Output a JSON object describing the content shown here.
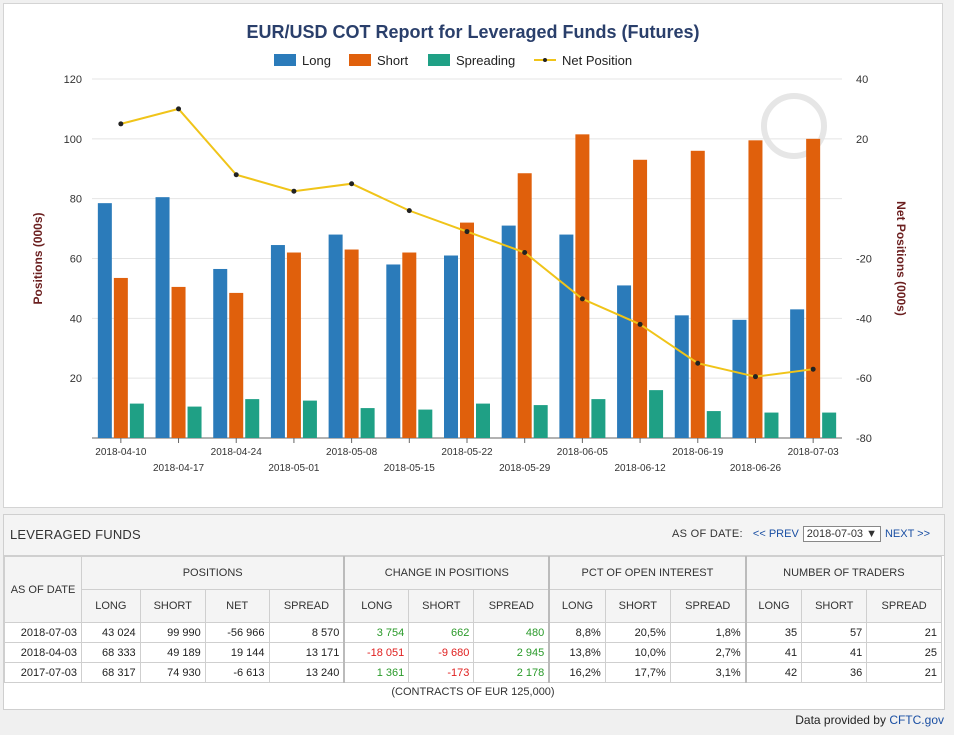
{
  "chart_data": {
    "type": "bar",
    "title": "EUR/USD COT Report for Leveraged Funds (Futures)",
    "ylabel": "Positions (000s)",
    "y2label": "Net Positions (000s)",
    "ylim": [
      0,
      120
    ],
    "y2lim": [
      -80,
      40
    ],
    "yticks": [
      20,
      40,
      60,
      80,
      100,
      120
    ],
    "y2ticks": [
      -80,
      -60,
      -40,
      -20,
      20,
      40
    ],
    "grid": true,
    "legend_position": "top-center",
    "categories": [
      "2018-04-10",
      "2018-04-17",
      "2018-04-24",
      "2018-05-01",
      "2018-05-08",
      "2018-05-15",
      "2018-05-22",
      "2018-05-29",
      "2018-06-05",
      "2018-06-12",
      "2018-06-19",
      "2018-06-26",
      "2018-07-03"
    ],
    "series": [
      {
        "name": "Long",
        "type": "bar",
        "color": "#2b7bba",
        "values": [
          78.5,
          80.5,
          56.5,
          64.5,
          68,
          58,
          61,
          71,
          68,
          51,
          41,
          39.5,
          43
        ]
      },
      {
        "name": "Short",
        "type": "bar",
        "color": "#e0600c",
        "values": [
          53.5,
          50.5,
          48.5,
          62,
          63,
          62,
          72,
          88.5,
          101.5,
          93,
          96,
          99.5,
          100
        ]
      },
      {
        "name": "Spreading",
        "type": "bar",
        "color": "#1fa085",
        "values": [
          11.5,
          10.5,
          13,
          12.5,
          10,
          9.5,
          11.5,
          11,
          13,
          16,
          9,
          8.5,
          8.5
        ]
      },
      {
        "name": "Net Position",
        "type": "line",
        "axis": "right",
        "color": "#f0c419",
        "values": [
          25,
          30,
          8,
          2.5,
          5,
          -4,
          -11,
          -18,
          -33.5,
          -42,
          -55,
          -59.5,
          -57
        ]
      }
    ]
  },
  "table": {
    "title": "LEVERAGED FUNDS",
    "as_of_label": "AS OF DATE:",
    "prev_label": "<< PREV",
    "selected_date": "2018-07-03",
    "next_label": "NEXT >>",
    "groups": {
      "as_of": "AS OF DATE",
      "positions": "POSITIONS",
      "change": "CHANGE IN POSITIONS",
      "pct": "PCT OF OPEN INTEREST",
      "traders": "NUMBER OF TRADERS"
    },
    "cols": {
      "positions": [
        "LONG",
        "SHORT",
        "NET",
        "SPREAD"
      ],
      "change": [
        "LONG",
        "SHORT",
        "SPREAD"
      ],
      "pct": [
        "LONG",
        "SHORT",
        "SPREAD"
      ],
      "traders": [
        "LONG",
        "SHORT",
        "SPREAD"
      ]
    },
    "rows": [
      {
        "date": "2018-07-03",
        "pos": [
          "43 024",
          "99 990",
          "-56 966",
          "8 570"
        ],
        "chg": [
          "3 754",
          "662",
          "480"
        ],
        "pct": [
          "8,8%",
          "20,5%",
          "1,8%"
        ],
        "trd": [
          "35",
          "57",
          "21"
        ]
      },
      {
        "date": "2018-04-03",
        "pos": [
          "68 333",
          "49 189",
          "19 144",
          "13 171"
        ],
        "chg": [
          "-18 051",
          "-9 680",
          "2 945"
        ],
        "pct": [
          "13,8%",
          "10,0%",
          "2,7%"
        ],
        "trd": [
          "41",
          "41",
          "25"
        ]
      },
      {
        "date": "2017-07-03",
        "pos": [
          "68 317",
          "74 930",
          "-6 613",
          "13 240"
        ],
        "chg": [
          "1 361",
          "-173",
          "2 178"
        ],
        "pct": [
          "16,2%",
          "17,7%",
          "3,1%"
        ],
        "trd": [
          "42",
          "36",
          "21"
        ]
      }
    ],
    "footnote": "(CONTRACTS OF EUR 125,000)"
  },
  "credit": {
    "text": "Data provided by",
    "link": "CFTC.gov"
  }
}
